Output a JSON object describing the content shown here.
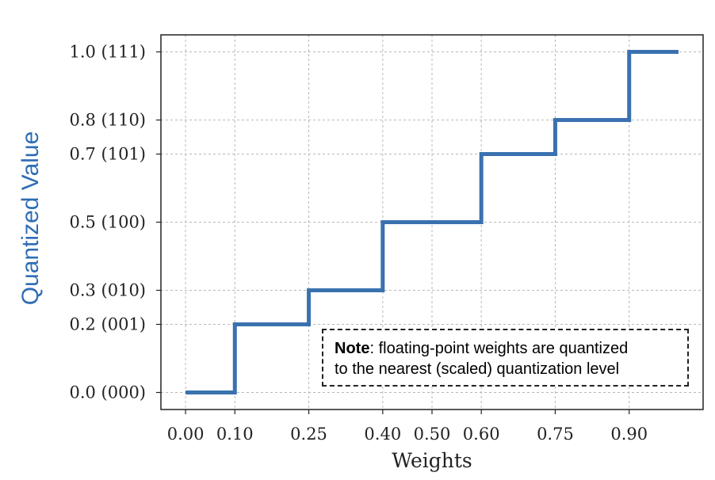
{
  "chart_data": {
    "type": "line",
    "step": true,
    "xlabel": "Weights",
    "ylabel": "Quantized Value",
    "x_ticks": [
      {
        "value": 0.0,
        "label": "0.00"
      },
      {
        "value": 0.1,
        "label": "0.10"
      },
      {
        "value": 0.25,
        "label": "0.25"
      },
      {
        "value": 0.4,
        "label": "0.40"
      },
      {
        "value": 0.5,
        "label": "0.50"
      },
      {
        "value": 0.6,
        "label": "0.60"
      },
      {
        "value": 0.75,
        "label": "0.75"
      },
      {
        "value": 0.9,
        "label": "0.90"
      }
    ],
    "y_ticks": [
      {
        "value": 0.0,
        "label": "0.0 (000)"
      },
      {
        "value": 0.2,
        "label": "0.2 (001)"
      },
      {
        "value": 0.3,
        "label": "0.3 (010)"
      },
      {
        "value": 0.5,
        "label": "0.5 (100)"
      },
      {
        "value": 0.7,
        "label": "0.7 (101)"
      },
      {
        "value": 0.8,
        "label": "0.8 (110)"
      },
      {
        "value": 1.0,
        "label": "1.0 (111)"
      }
    ],
    "xlim": [
      -0.05,
      1.05
    ],
    "ylim": [
      -0.05,
      1.05
    ],
    "grid": true,
    "line_color": "#3a72b0",
    "axis_label_color": "#2e6db4",
    "steps": [
      {
        "x0": 0.0,
        "x1": 0.1,
        "y": 0.0
      },
      {
        "x0": 0.1,
        "x1": 0.25,
        "y": 0.2
      },
      {
        "x0": 0.25,
        "x1": 0.4,
        "y": 0.3
      },
      {
        "x0": 0.4,
        "x1": 0.6,
        "y": 0.5
      },
      {
        "x0": 0.6,
        "x1": 0.75,
        "y": 0.7
      },
      {
        "x0": 0.75,
        "x1": 0.9,
        "y": 0.8
      },
      {
        "x0": 0.9,
        "x1": 1.0,
        "y": 1.0
      }
    ],
    "annotation": {
      "bold": "Note",
      "text": ": floating-point weights are quantized",
      "text2": "to the nearest (scaled) quantization level"
    }
  }
}
